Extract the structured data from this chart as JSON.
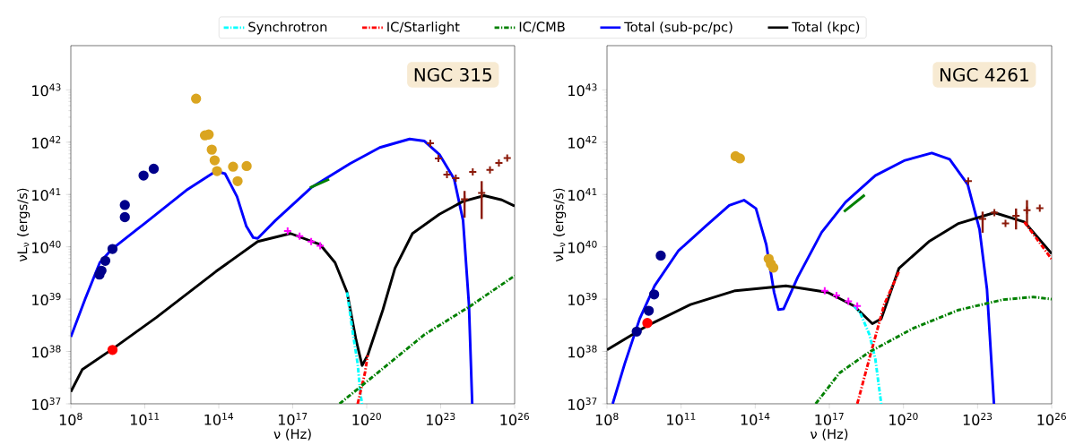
{
  "chart_data": [
    {
      "type": "line",
      "annotations": [
        "NGC 315"
      ],
      "xlabel": "ν (Hz)",
      "ylabel": "νL$_{ν}$ (ergs/s)",
      "log": "xy",
      "legend": "top",
      "xlim": [
        100000000.0,
        1e+26
      ],
      "ylim": [
        1e+37,
        7e+43
      ],
      "xticks": [
        {
          "value": 100000000.0,
          "label": "10$^{8}$"
        },
        {
          "value": 100000000000.0,
          "label": "10$^{11}$"
        },
        {
          "value": 100000000000000.0,
          "label": "10$^{14}$"
        },
        {
          "value": 1e+17,
          "label": "10$^{17}$"
        },
        {
          "value": 1e+20,
          "label": "10$^{20}$"
        },
        {
          "value": 1e+23,
          "label": "10$^{23}$"
        },
        {
          "value": 1e+26,
          "label": "10$^{26}$"
        }
      ],
      "yticks": [
        {
          "value": 1e+37,
          "label": "10$^{37}$"
        },
        {
          "value": 1e+38,
          "label": "10$^{38}$"
        },
        {
          "value": 1e+39,
          "label": "10$^{39}$"
        },
        {
          "value": 1e+40,
          "label": "10$^{40}$"
        },
        {
          "value": 1e+41,
          "label": "10$^{41}$"
        },
        {
          "value": 1e+42,
          "label": "10$^{42}$"
        },
        {
          "value": 1e+43,
          "label": "10$^{43}$"
        }
      ],
      "series": [
        {
          "name": "Synchrotron",
          "color": "#00ffff",
          "line_style": "dashdot",
          "x": [
            1.6e+19,
            2.8e+19,
            4.3e+19,
            5.6e+19,
            6.5e+19
          ],
          "values": [
            1.35e+39,
            2.1e+38,
            5.8e+37,
            1.5e+37,
            1e+37
          ]
        },
        {
          "name": "IC/Starlight",
          "color": "#ff0000",
          "line_style": "dashdot",
          "x": [
            4.3e+19,
            8.5e+19,
            1.1e+20
          ],
          "values": [
            1e+37,
            3.9e+37,
            8.5e+37
          ]
        },
        {
          "name": "IC/CMB",
          "color": "#008000",
          "line_style": "dashdot",
          "x": [
            7.9e+18,
            2.2e+22,
            1.4e+24,
            1e+26
          ],
          "values": [
            1e+37,
            2.1e+38,
            7.1e+38,
            2.8e+39
          ]
        },
        {
          "name": "Total (sub-pc/pc)",
          "color": "#0000ff",
          "line_style": "solid",
          "x": [
            100000000.0,
            380000000.0,
            1500000000.0,
            4700000000.0,
            98000000000.0,
            4800000000000.0,
            78000000000000.0,
            180000000000000.0,
            550000000000000.0,
            1300000000000000.0,
            2500000000000000.0,
            3800000000000000.0,
            2e+16,
            5.6e+17,
            2.1e+19,
            3.4e+20,
            5.5e+21,
            2.2e+22,
            8.9e+22,
            3.5e+23,
            8.1e+23,
            1.4e+24,
            1.9e+24
          ],
          "values": [
            1.9e+38,
            1e+39,
            5e+39,
            9.1e+39,
            2.8e+40,
            1.2e+41,
            2.8e+41,
            2.5e+41,
            9.1e+40,
            2.5e+40,
            1.5e+40,
            1.45e+40,
            3.2e+40,
            1.35e+41,
            3.9e+41,
            7.9e+41,
            1.15e+42,
            1.05e+42,
            5.8e+41,
            2e+41,
            3.2e+40,
            7.9e+38,
            1e+37
          ]
        },
        {
          "name": "Total (kpc)",
          "color": "#000000",
          "line_style": "solid",
          "x": [
            100000000.0,
            290000000.0,
            4700000000.0,
            300000000000.0,
            78000000000000.0,
            3800000000000000.0,
            8.1e+16,
            1.3e+18,
            5.2e+18,
            1.6e+19,
            3.7e+19,
            6.5e+19,
            1.1e+20,
            4.5e+20,
            1.4e+21,
            7.2e+21,
            8.9e+22,
            8.1e+23,
            5.8e+24,
            3e+25,
            1e+26
          ],
          "values": [
            1.7e+37,
            4.5e+37,
            1.1e+38,
            4.5e+38,
            3.4e+39,
            1.26e+40,
            1.8e+40,
            1.1e+40,
            5e+39,
            1.35e+39,
            1.66e+38,
            5.4e+37,
            8.5e+37,
            6.2e+38,
            3.9e+39,
            1.8e+40,
            4.2e+40,
            7.4e+40,
            9.5e+40,
            7.9e+40,
            6e+40
          ]
        },
        {
          "color": "#008000",
          "line_style": "solid",
          "x": [
            5e+17,
            3e+18
          ],
          "values": [
            1.35e+41,
            1.95e+41
          ]
        },
        {
          "type": "scatter",
          "color": "#ff00ff",
          "marker": "cross",
          "x": [
            6.2e+16,
            1.9e+17,
            5.6e+17,
            1.3e+18
          ],
          "values": [
            2e+40,
            1.6e+40,
            1.26e+40,
            1.05e+40
          ]
        },
        {
          "type": "scatter",
          "color": "#00008b",
          "marker": "circle",
          "x": [
            1450000000.0,
            1750000000.0,
            2500000000.0,
            4900000000.0,
            15500000000.0,
            15500000000.0,
            89000000000.0,
            230000000000.0
          ],
          "values": [
            2.95e+39,
            3.5e+39,
            5.4e+39,
            9.1e+39,
            6.3e+40,
            3.7e+40,
            2.3e+41,
            3.1e+41
          ]
        },
        {
          "type": "scatter",
          "color": "#ff0000",
          "marker": "circle",
          "x": [
            4900000000.0
          ],
          "values": [
            1.07e+38
          ]
        },
        {
          "type": "scatter",
          "color": "#daa520",
          "marker": "circle",
          "x": [
            12000000000000.0,
            27500000000000.0,
            39000000000000.0,
            52000000000000.0,
            68000000000000.0,
            85000000000000.0,
            380000000000000.0,
            1350000000000000.0,
            580000000000000.0
          ],
          "values": [
            6.8e+42,
            1.35e+42,
            1.4e+42,
            7.2e+41,
            4.5e+41,
            2.8e+41,
            3.4e+41,
            3.5e+41,
            1.8e+41
          ]
        },
        {
          "type": "scatter",
          "color": "#8b1a0a",
          "marker": "cross",
          "x": [
            3.8e+22,
            8.1e+22,
            1.8e+23,
            4.1e+23,
            9.3e+23,
            2e+24,
            4.6e+24,
            1e+25,
            2.3e+25,
            5e+25
          ],
          "values": [
            9.5e+41,
            4.9e+41,
            2.4e+41,
            2.05e+41,
            8.1e+40,
            2.7e+41,
            1.07e+41,
            2.95e+41,
            4e+41,
            5e+41
          ],
          "errors": [
            null,
            null,
            null,
            null,
            [
              3.6e+40,
              1.17e+41
            ],
            null,
            [
              3.4e+40,
              1.8e+41
            ],
            null,
            null,
            null
          ]
        }
      ]
    },
    {
      "type": "line",
      "annotations": [
        "NGC 4261"
      ],
      "xlabel": "ν (Hz)",
      "ylabel": "νL$_{ν}$ (ergs/s)",
      "log": "xy",
      "xlim": [
        100000000.0,
        1e+26
      ],
      "ylim": [
        1e+37,
        7e+43
      ],
      "xticks": [
        {
          "value": 100000000.0,
          "label": "10$^{8}$"
        },
        {
          "value": 100000000000.0,
          "label": "10$^{11}$"
        },
        {
          "value": 100000000000000.0,
          "label": "10$^{14}$"
        },
        {
          "value": 1e+17,
          "label": "10$^{17}$"
        },
        {
          "value": 1e+20,
          "label": "10$^{20}$"
        },
        {
          "value": 1e+23,
          "label": "10$^{23}$"
        },
        {
          "value": 1e+26,
          "label": "10$^{26}$"
        }
      ],
      "yticks": [
        {
          "value": 1e+37,
          "label": "10$^{37}$"
        },
        {
          "value": 1e+38,
          "label": "10$^{38}$"
        },
        {
          "value": 1e+39,
          "label": "10$^{39}$"
        },
        {
          "value": 1e+40,
          "label": "10$^{40}$"
        },
        {
          "value": 1e+41,
          "label": "10$^{41}$"
        },
        {
          "value": 1e+42,
          "label": "10$^{42}$"
        },
        {
          "value": 1e+43,
          "label": "10$^{43}$"
        }
      ],
      "series": [
        {
          "color": "#00ffff",
          "line_style": "dashdot",
          "x": [
            1e+18,
            1.8e+18,
            4.2e+18,
            7.2e+18,
            1.26e+19
          ],
          "values": [
            7.4e+38,
            5.4e+38,
            2.1e+38,
            7.4e+37,
            1e+37
          ]
        },
        {
          "color": "#ff0000",
          "line_style": "dashdot",
          "x": [
            1.35e+18,
            4.2e+18,
            1.66e+19,
            6.6e+19
          ],
          "values": [
            1e+37,
            7.4e+37,
            7.9e+38,
            3.4e+39
          ]
        },
        {
          "color": "#ff0000",
          "line_style": "dashdot",
          "x": [
            7.8e+24,
            1e+26
          ],
          "values": [
            3e+40,
            5.8e+39
          ]
        },
        {
          "color": "#008000",
          "line_style": "dashdot",
          "x": [
            2.8e+16,
            2.6e+17,
            4.2e+18,
            2.6e+20,
            1.7e+22,
            1.1e+24,
            1.8e+25,
            1e+26
          ],
          "values": [
            1e+37,
            3.9e+37,
            9.8e+37,
            2.8e+38,
            6.2e+38,
            9.8e+38,
            1.1e+39,
            1e+39
          ]
        },
        {
          "color": "#0000ff",
          "line_style": "solid",
          "x": [
            170000000.0,
            520000000.0,
            2100000000.0,
            8500000000.0,
            79000000000.0,
            960000000000.0,
            8900000000000.0,
            35000000000000.0,
            107000000000000.0,
            280000000000000.0,
            580000000000000.0,
            870000000000000.0,
            1400000000000000.0,
            5200000000000000.0,
            4.9e+16,
            4.5e+17,
            7.2e+18,
            1.15e+20,
            1.4e+21,
            7.4e+21,
            4e+22,
            1.2e+23,
            2.4e+23,
            4.6e+23
          ],
          "values": [
            1e+37,
            5.8e+37,
            4.2e+38,
            1.8e+39,
            8.5e+39,
            2.45e+40,
            6.2e+40,
            7.8e+40,
            5.4e+40,
            1.1e+40,
            1.35e+39,
            6.3e+38,
            6.5e+38,
            2.6e+39,
            1.9e+40,
            7.1e+40,
            2.3e+41,
            4.5e+41,
            6.2e+41,
            4.7e+41,
            1.55e+41,
            2.15e+40,
            1.55e+39,
            1e+37
          ]
        },
        {
          "color": "#000000",
          "line_style": "solid",
          "x": [
            100000000.0,
            3700000000.0,
            240000000000.0,
            15500000000000.0,
            1750000000000000.0,
            8.5e+16,
            1e+18,
            5.5e+18,
            1.26e+19,
            6.6e+19,
            1.07e+21,
            1.7e+22,
            4.8e+23,
            7.8e+24,
            1e+26
          ],
          "values": [
            1.07e+38,
            3e+38,
            7.9e+38,
            1.45e+39,
            1.8e+39,
            1.35e+39,
            7.4e+38,
            3.4e+38,
            4.2e+38,
            3.9e+39,
            1.26e+40,
            2.8e+40,
            4.5e+40,
            3e+40,
            7.4e+39
          ]
        },
        {
          "color": "#008000",
          "line_style": "solid",
          "x": [
            3.9e+17,
            2.7e+18
          ],
          "values": [
            4.7e+40,
            9.8e+40
          ]
        },
        {
          "type": "scatter",
          "color": "#ff00ff",
          "marker": "cross",
          "x": [
            6.5e+16,
            1.95e+17,
            5.9e+17,
            1.35e+18
          ],
          "values": [
            1.45e+39,
            1.17e+39,
            9.1e+38,
            7.4e+38
          ]
        },
        {
          "type": "scatter",
          "color": "#00008b",
          "marker": "circle",
          "x": [
            1600000000.0,
            4900000000.0,
            8100000000.0,
            15000000000.0
          ],
          "values": [
            2.4e+38,
            6e+38,
            1.23e+39,
            6.8e+39
          ]
        },
        {
          "type": "scatter",
          "color": "#ff0000",
          "marker": "circle",
          "x": [
            4300000000.0
          ],
          "values": [
            3.5e+38
          ]
        },
        {
          "type": "scatter",
          "color": "#daa520",
          "marker": "circle",
          "x": [
            16000000000000.0,
            24000000000000.0,
            350000000000000.0,
            430000000000000.0,
            540000000000000.0
          ],
          "values": [
            5.4e+41,
            4.9e+41,
            5.9e+39,
            4.7e+39,
            4e+39
          ]
        },
        {
          "type": "scatter",
          "color": "#8b1a0a",
          "marker": "cross",
          "x": [
            4.2e+22,
            1.6e+23,
            4.8e+23,
            1.35e+24,
            3.6e+24,
            1e+25,
            3.3e+25
          ],
          "values": [
            1.8e+41,
            3.4e+40,
            4.5e+40,
            2.8e+40,
            3.9e+40,
            5e+40,
            5.5e+40
          ],
          "errors": [
            null,
            [
              1.86e+40,
              4.7e+40
            ],
            null,
            null,
            [
              2.15e+40,
              5.4e+40
            ],
            [
              2.45e+40,
              7.8e+40
            ],
            null
          ]
        }
      ]
    }
  ]
}
